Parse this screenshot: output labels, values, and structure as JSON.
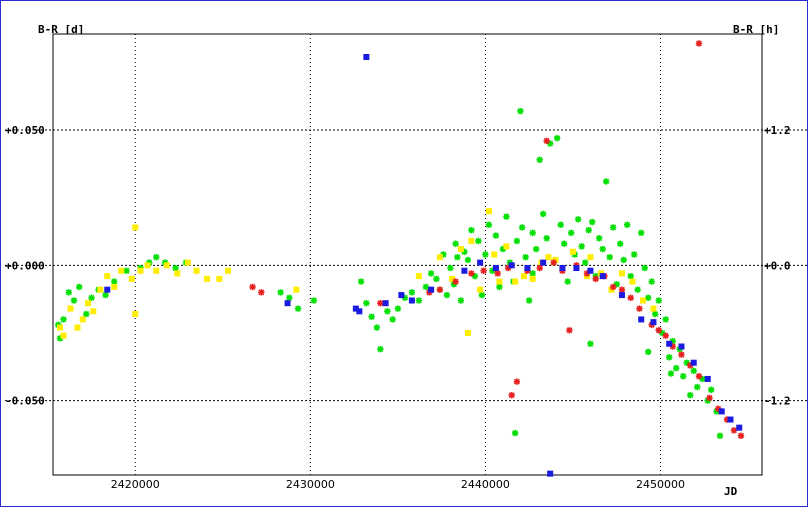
{
  "chart_data": {
    "type": "scatter",
    "title": "",
    "xlabel": "JD",
    "ylabel_left": "B-R [d]",
    "ylabel_right": "B-R [h]",
    "xlim": [
      2415300,
      2455800
    ],
    "ylim": [
      -0.0775,
      0.0855
    ],
    "grid": true,
    "x_ticks": [
      2420000,
      2430000,
      2440000,
      2450000
    ],
    "x_tick_labels": [
      "2420000",
      "2430000",
      "2440000",
      "2450000"
    ],
    "y_ticks_left": [
      0.05,
      0.0,
      -0.05
    ],
    "y_tick_labels_left": [
      "+0.050",
      "+0.000",
      "-0.050"
    ],
    "y_tick_labels_right": [
      "+1.2",
      "+0.0",
      "-1.2"
    ],
    "series": [
      {
        "color": "#00e000",
        "marker": "asterisk",
        "points": [
          [
            2415600,
            -0.022
          ],
          [
            2415700,
            -0.027
          ],
          [
            2415900,
            -0.02
          ],
          [
            2416200,
            -0.01
          ],
          [
            2416500,
            -0.013
          ],
          [
            2416800,
            -0.008
          ],
          [
            2417200,
            -0.018
          ],
          [
            2417500,
            -0.012
          ],
          [
            2417900,
            -0.009
          ],
          [
            2418300,
            -0.011
          ],
          [
            2418800,
            -0.006
          ],
          [
            2419500,
            -0.002
          ],
          [
            2420300,
            -0.001
          ],
          [
            2420800,
            0.001
          ],
          [
            2421200,
            0.003
          ],
          [
            2421700,
            0.001
          ],
          [
            2422300,
            -0.001
          ],
          [
            2422900,
            0.001
          ],
          [
            2428300,
            -0.01
          ],
          [
            2428800,
            -0.012
          ],
          [
            2429300,
            -0.016
          ],
          [
            2430200,
            -0.013
          ],
          [
            2432900,
            -0.006
          ],
          [
            2433200,
            -0.014
          ],
          [
            2433500,
            -0.019
          ],
          [
            2433800,
            -0.023
          ],
          [
            2434000,
            -0.031
          ],
          [
            2434400,
            -0.017
          ],
          [
            2434700,
            -0.02
          ],
          [
            2435000,
            -0.016
          ],
          [
            2435400,
            -0.012
          ],
          [
            2435800,
            -0.01
          ],
          [
            2436200,
            -0.013
          ],
          [
            2436600,
            -0.008
          ],
          [
            2436900,
            -0.003
          ],
          [
            2437200,
            -0.005
          ],
          [
            2437400,
            -0.009
          ],
          [
            2437600,
            0.004
          ],
          [
            2437800,
            -0.011
          ],
          [
            2438000,
            -0.001
          ],
          [
            2438200,
            -0.007
          ],
          [
            2438400,
            0.003
          ],
          [
            2438600,
            -0.013
          ],
          [
            2438800,
            0.005
          ],
          [
            2439000,
            0.002
          ],
          [
            2439200,
            0.013
          ],
          [
            2439400,
            -0.004
          ],
          [
            2439600,
            0.009
          ],
          [
            2439800,
            -0.011
          ],
          [
            2440000,
            0.004
          ],
          [
            2440200,
            0.015
          ],
          [
            2440400,
            -0.002
          ],
          [
            2440600,
            0.011
          ],
          [
            2440800,
            -0.008
          ],
          [
            2441000,
            0.006
          ],
          [
            2441200,
            0.018
          ],
          [
            2441400,
            0.001
          ],
          [
            2441600,
            -0.006
          ],
          [
            2441800,
            0.009
          ],
          [
            2442000,
            0.057
          ],
          [
            2442100,
            0.014
          ],
          [
            2442300,
            0.003
          ],
          [
            2442500,
            -0.013
          ],
          [
            2442700,
            0.012
          ],
          [
            2442900,
            0.006
          ],
          [
            2443100,
            0.039
          ],
          [
            2443300,
            0.019
          ],
          [
            2443500,
            0.01
          ],
          [
            2443700,
            0.045
          ],
          [
            2443900,
            0.001
          ],
          [
            2444100,
            0.047
          ],
          [
            2444300,
            0.015
          ],
          [
            2444500,
            0.008
          ],
          [
            2444700,
            -0.006
          ],
          [
            2444900,
            0.012
          ],
          [
            2445100,
            0.004
          ],
          [
            2445300,
            0.017
          ],
          [
            2445500,
            0.007
          ],
          [
            2445700,
            0.001
          ],
          [
            2445900,
            0.013
          ],
          [
            2446100,
            0.016
          ],
          [
            2446300,
            -0.004
          ],
          [
            2446500,
            0.01
          ],
          [
            2446700,
            0.006
          ],
          [
            2446900,
            0.031
          ],
          [
            2447100,
            0.003
          ],
          [
            2447300,
            0.014
          ],
          [
            2447500,
            -0.007
          ],
          [
            2447700,
            0.008
          ],
          [
            2447900,
            0.002
          ],
          [
            2448100,
            0.015
          ],
          [
            2448300,
            -0.004
          ],
          [
            2448500,
            0.004
          ],
          [
            2448700,
            -0.009
          ],
          [
            2448900,
            0.012
          ],
          [
            2449100,
            -0.001
          ],
          [
            2449300,
            -0.012
          ],
          [
            2449500,
            -0.006
          ],
          [
            2449700,
            -0.018
          ],
          [
            2449900,
            -0.013
          ],
          [
            2450100,
            -0.025
          ],
          [
            2450300,
            -0.02
          ],
          [
            2450500,
            -0.034
          ],
          [
            2450700,
            -0.028
          ],
          [
            2450900,
            -0.038
          ],
          [
            2451100,
            -0.031
          ],
          [
            2451300,
            -0.041
          ],
          [
            2451500,
            -0.036
          ],
          [
            2451700,
            -0.048
          ],
          [
            2451900,
            -0.039
          ],
          [
            2452100,
            -0.045
          ],
          [
            2452400,
            -0.042
          ],
          [
            2452700,
            -0.05
          ],
          [
            2452900,
            -0.046
          ],
          [
            2453200,
            -0.054
          ],
          [
            2453400,
            -0.063
          ],
          [
            2441700,
            -0.062
          ],
          [
            2446000,
            -0.029
          ],
          [
            2449300,
            -0.032
          ],
          [
            2450600,
            -0.04
          ],
          [
            2438300,
            0.008
          ],
          [
            2442700,
            -0.003
          ]
        ]
      },
      {
        "color": "#ffee00",
        "marker": "square",
        "points": [
          [
            2415700,
            -0.023
          ],
          [
            2415900,
            -0.026
          ],
          [
            2416300,
            -0.016
          ],
          [
            2416700,
            -0.023
          ],
          [
            2417000,
            -0.02
          ],
          [
            2417300,
            -0.014
          ],
          [
            2417600,
            -0.017
          ],
          [
            2418000,
            -0.009
          ],
          [
            2418400,
            -0.004
          ],
          [
            2418800,
            -0.008
          ],
          [
            2419200,
            -0.002
          ],
          [
            2419800,
            -0.005
          ],
          [
            2420000,
            0.014
          ],
          [
            2420000,
            -0.018
          ],
          [
            2420300,
            -0.002
          ],
          [
            2420700,
            0.0
          ],
          [
            2421200,
            -0.002
          ],
          [
            2421800,
            0.0
          ],
          [
            2422400,
            -0.003
          ],
          [
            2423000,
            0.001
          ],
          [
            2423500,
            -0.002
          ],
          [
            2424100,
            -0.005
          ],
          [
            2424800,
            -0.005
          ],
          [
            2425300,
            -0.002
          ],
          [
            2429200,
            -0.009
          ],
          [
            2436200,
            -0.004
          ],
          [
            2437400,
            0.003
          ],
          [
            2438100,
            -0.005
          ],
          [
            2438600,
            0.006
          ],
          [
            2439200,
            0.009
          ],
          [
            2439700,
            -0.009
          ],
          [
            2440200,
            0.02
          ],
          [
            2440500,
            0.004
          ],
          [
            2440800,
            -0.006
          ],
          [
            2441200,
            0.007
          ],
          [
            2441700,
            -0.006
          ],
          [
            2442200,
            -0.004
          ],
          [
            2442700,
            -0.005
          ],
          [
            2443200,
            0.001
          ],
          [
            2444000,
            0.002
          ],
          [
            2445000,
            0.005
          ],
          [
            2445800,
            -0.004
          ],
          [
            2446600,
            -0.003
          ],
          [
            2447200,
            -0.009
          ],
          [
            2447800,
            -0.003
          ],
          [
            2448400,
            -0.006
          ],
          [
            2449000,
            -0.013
          ],
          [
            2449600,
            -0.016
          ],
          [
            2439000,
            -0.025
          ],
          [
            2443600,
            0.003
          ],
          [
            2446000,
            0.003
          ]
        ]
      },
      {
        "color": "#e82020",
        "marker": "asterisk",
        "points": [
          [
            2426700,
            -0.008
          ],
          [
            2427200,
            -0.01
          ],
          [
            2434000,
            -0.014
          ],
          [
            2436800,
            -0.01
          ],
          [
            2437400,
            -0.009
          ],
          [
            2438300,
            -0.006
          ],
          [
            2439200,
            -0.003
          ],
          [
            2439900,
            -0.002
          ],
          [
            2440700,
            -0.003
          ],
          [
            2441300,
            -0.001
          ],
          [
            2441500,
            -0.048
          ],
          [
            2441800,
            -0.043
          ],
          [
            2442400,
            -0.002
          ],
          [
            2443100,
            -0.001
          ],
          [
            2443500,
            0.046
          ],
          [
            2443900,
            0.001
          ],
          [
            2444400,
            -0.002
          ],
          [
            2444800,
            -0.024
          ],
          [
            2445200,
            0.0
          ],
          [
            2445800,
            -0.003
          ],
          [
            2446300,
            -0.005
          ],
          [
            2446800,
            -0.004
          ],
          [
            2447300,
            -0.008
          ],
          [
            2447800,
            -0.009
          ],
          [
            2448300,
            -0.012
          ],
          [
            2448800,
            -0.016
          ],
          [
            2449500,
            -0.022
          ],
          [
            2449900,
            -0.024
          ],
          [
            2450300,
            -0.026
          ],
          [
            2450700,
            -0.03
          ],
          [
            2451200,
            -0.033
          ],
          [
            2451700,
            -0.037
          ],
          [
            2452200,
            -0.041
          ],
          [
            2452800,
            -0.049
          ],
          [
            2453300,
            -0.053
          ],
          [
            2453800,
            -0.057
          ],
          [
            2454200,
            -0.061
          ],
          [
            2454600,
            -0.063
          ],
          [
            2452200,
            0.082
          ]
        ]
      },
      {
        "color": "#1a1ae0",
        "marker": "square",
        "points": [
          [
            2418400,
            -0.009
          ],
          [
            2428700,
            -0.014
          ],
          [
            2432600,
            -0.016
          ],
          [
            2432800,
            -0.017
          ],
          [
            2433200,
            0.077
          ],
          [
            2434300,
            -0.014
          ],
          [
            2435200,
            -0.011
          ],
          [
            2435800,
            -0.013
          ],
          [
            2436900,
            -0.009
          ],
          [
            2438800,
            -0.002
          ],
          [
            2439700,
            0.001
          ],
          [
            2440600,
            -0.001
          ],
          [
            2441500,
            0.0
          ],
          [
            2442400,
            -0.001
          ],
          [
            2443300,
            0.001
          ],
          [
            2443700,
            -0.077
          ],
          [
            2444400,
            -0.001
          ],
          [
            2445200,
            -0.001
          ],
          [
            2446000,
            -0.002
          ],
          [
            2446700,
            -0.004
          ],
          [
            2447800,
            -0.011
          ],
          [
            2448900,
            -0.02
          ],
          [
            2449600,
            -0.021
          ],
          [
            2450500,
            -0.029
          ],
          [
            2451200,
            -0.03
          ],
          [
            2451900,
            -0.036
          ],
          [
            2452700,
            -0.042
          ],
          [
            2453500,
            -0.054
          ],
          [
            2454000,
            -0.057
          ],
          [
            2454500,
            -0.06
          ]
        ]
      }
    ]
  }
}
